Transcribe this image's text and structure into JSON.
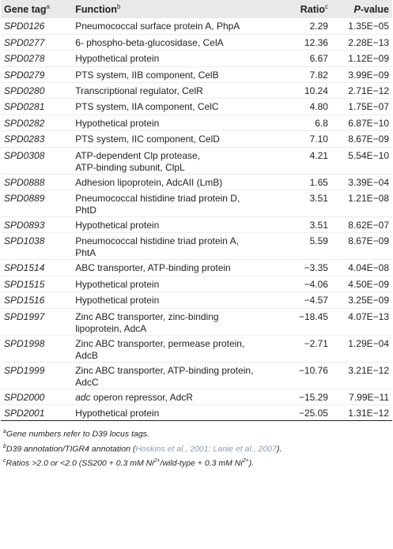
{
  "headers": {
    "tag": "Gene tag",
    "tag_sup": "a",
    "function": "Function",
    "function_sup": "b",
    "ratio": "Ratio",
    "ratio_sup": "c",
    "pvalue_p": "P",
    "pvalue_rest": "-value"
  },
  "rows": [
    {
      "tag": "SPD0126",
      "func": "Pneumococcal surface protein A, PhpA",
      "ratio": "2.29",
      "p": "1.35E−05"
    },
    {
      "tag": "SPD0277",
      "func": "6- phospho-beta-glucosidase, CelA",
      "ratio": "12.36",
      "p": "2.28E−13"
    },
    {
      "tag": "SPD0278",
      "func": "Hypothetical protein",
      "ratio": "6.67",
      "p": "1.12E−09"
    },
    {
      "tag": "SPD0279",
      "func": "PTS system, IIB component, CelB",
      "ratio": "7.82",
      "p": "3.99E−09"
    },
    {
      "tag": "SPD0280",
      "func": "Transcriptional regulator, CelR",
      "ratio": "10.24",
      "p": "2.71E−12"
    },
    {
      "tag": "SPD0281",
      "func": "PTS system, IIA component, CelC",
      "ratio": "4.80",
      "p": "1.75E−07"
    },
    {
      "tag": "SPD0282",
      "func": "Hypothetical protein",
      "ratio": "6.8",
      "p": "6.87E−10"
    },
    {
      "tag": "SPD0283",
      "func": "PTS system, IIC component, CelD",
      "ratio": "7.10",
      "p": "8.67E−09"
    },
    {
      "tag": "SPD0308",
      "func": "ATP-dependent Clp protease,",
      "func2": "ATP-binding subunit, ClpL",
      "ratio": "4.21",
      "p": "5.54E−10"
    },
    {
      "tag": "SPD0888",
      "func": "Adhesion lipoprotein, AdcAII (LmB)",
      "ratio": "1.65",
      "p": "3.39E−04"
    },
    {
      "tag": "SPD0889",
      "func": "Pneumococcal histidine triad protein D,",
      "func2": "PhtD",
      "ratio": "3.51",
      "p": "1.21E−08"
    },
    {
      "tag": "SPD0893",
      "func": "Hypothetical protein",
      "ratio": "3.51",
      "p": "8.62E−07"
    },
    {
      "tag": "SPD1038",
      "func": "Pneumococcal histidine triad protein A,",
      "func2": "PhtA",
      "ratio": "5.59",
      "p": "8.67E−09"
    },
    {
      "tag": "SPD1514",
      "func": "ABC transporter, ATP-binding protein",
      "ratio": "−3.35",
      "p": "4.04E−08"
    },
    {
      "tag": "SPD1515",
      "func": "Hypothetical protein",
      "ratio": "−4.06",
      "p": "4.50E−09"
    },
    {
      "tag": "SPD1516",
      "func": "Hypothetical protein",
      "ratio": "−4.57",
      "p": "3.25E−09"
    },
    {
      "tag": "SPD1997",
      "func": "Zinc ABC transporter, zinc-binding",
      "func2": "lipoprotein, AdcA",
      "ratio": "−18.45",
      "p": "4.07E−13"
    },
    {
      "tag": "SPD1998",
      "func": "Zinc ABC transporter, permease protein,",
      "func2": "AdcB",
      "ratio": "−2.71",
      "p": "1.29E−04"
    },
    {
      "tag": "SPD1999",
      "func": "Zinc ABC transporter, ATP-binding protein,",
      "func2": "AdcC",
      "ratio": "−10.76",
      "p": "3.21E−12"
    },
    {
      "tag": "SPD2000",
      "func_em": "adc",
      "func": " operon repressor, AdcR",
      "ratio": "−15.29",
      "p": "7.99E−11"
    },
    {
      "tag": "SPD2001",
      "func": "Hypothetical protein",
      "ratio": "−25.05",
      "p": "1.31E−12"
    }
  ],
  "footnotes": {
    "a_sup": "a",
    "a_text": "Gene numbers refer to D39 locus tags.",
    "b_sup": "b",
    "b_text": "D39 annotation/TIGR4 annotation (",
    "b_cite": "Hoskins et al., 2001; Lanie et al., 2007",
    "b_end": ").",
    "c_sup": "c",
    "c_text": "Ratios >2.0 or <2.0 (SS200 + 0.3 mM Ni",
    "c_sup2": "2+",
    "c_mid": "/wild-type + 0.3 mM Ni",
    "c_sup3": "2+",
    "c_end": ")."
  }
}
